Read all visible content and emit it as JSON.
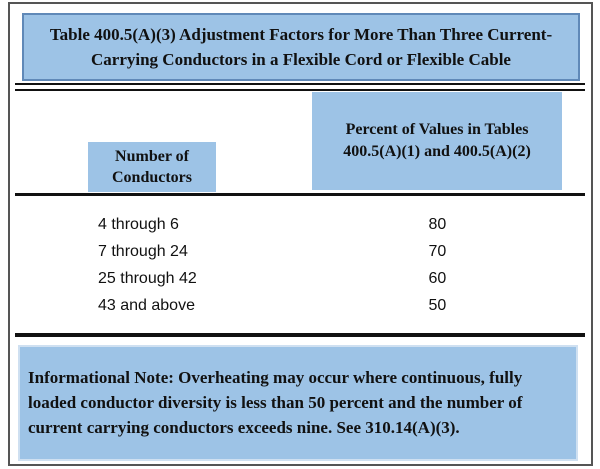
{
  "figure": {
    "kind": "code-book-table",
    "colors": {
      "panel_blue": "#9dc3e6",
      "title_border_blue": "#6089b8",
      "frame_gray": "#555555",
      "rule_black": "#111111",
      "note_border_light_blue": "#cfe0f1"
    }
  },
  "table": {
    "title": "Table 400.5(A)(3) Adjustment Factors for More Than Three Current-Carrying Conductors in a Flexible Cord or Flexible Cable",
    "title_lines": [
      "Table 400.5(A)(3) Adjustment Factors for More Than Three Current-",
      "Carrying Conductors in a Flexible Cord or Flexible Cable"
    ],
    "columns": [
      {
        "label": "Number of Conductors",
        "lines": [
          "Number of",
          "Conductors"
        ]
      },
      {
        "label": "Percent of Values in Tables 400.5(A)(1) and 400.5(A)(2)",
        "lines": [
          "Percent of Values in Tables",
          "400.5(A)(1) and 400.5(A)(2)"
        ]
      }
    ],
    "rows": [
      {
        "conductors": "4 through 6",
        "percent": "80"
      },
      {
        "conductors": "7 through 24",
        "percent": "70"
      },
      {
        "conductors": "25 through 42",
        "percent": "60"
      },
      {
        "conductors": "43 and above",
        "percent": "50"
      }
    ]
  },
  "note": {
    "text": "Informational Note: Overheating may occur where continuous, fully loaded conductor diversity is less than 50 percent and the number of current carrying conductors exceeds nine. See 310.14(A)(3)."
  }
}
